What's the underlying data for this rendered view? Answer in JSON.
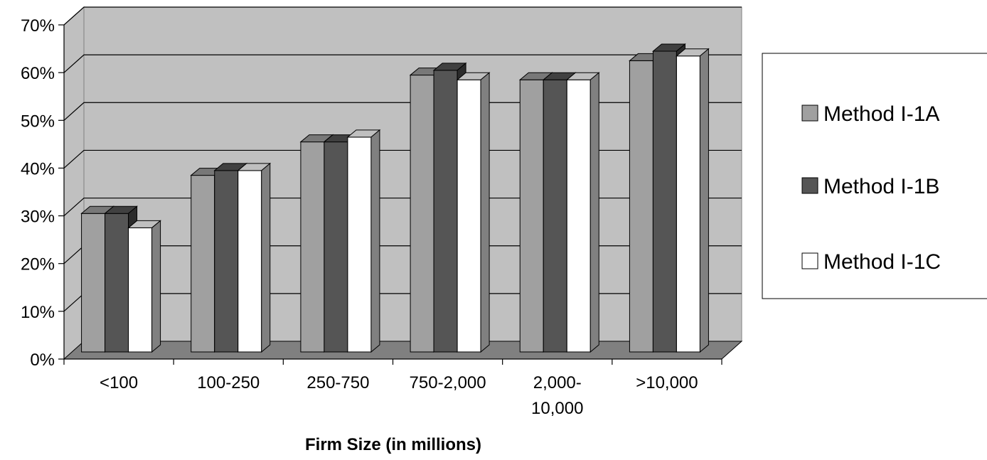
{
  "chart_data": {
    "type": "bar",
    "title": "",
    "xlabel": "Firm Size (in millions)",
    "ylabel": "",
    "ylim": [
      0,
      0.7
    ],
    "yticks": [
      0,
      0.1,
      0.2,
      0.3,
      0.4,
      0.5,
      0.6,
      0.7
    ],
    "ytick_labels": [
      "0%",
      "10%",
      "20%",
      "30%",
      "40%",
      "50%",
      "60%",
      "70%"
    ],
    "categories": [
      "<100",
      "100-250",
      "250-750",
      "750-2,000",
      "2,000-\n10,000",
      ">10,000"
    ],
    "series": [
      {
        "name": "Method I-1A",
        "color": "#a0a0a0",
        "values": [
          0.29,
          0.37,
          0.44,
          0.58,
          0.57,
          0.61
        ]
      },
      {
        "name": "Method I-1B",
        "color": "#555555",
        "values": [
          0.29,
          0.38,
          0.44,
          0.59,
          0.57,
          0.63
        ]
      },
      {
        "name": "Method I-1C",
        "color": "#ffffff",
        "values": [
          0.26,
          0.38,
          0.45,
          0.57,
          0.57,
          0.62
        ]
      }
    ],
    "grid": true,
    "style": "3d",
    "legend_position": "right"
  }
}
